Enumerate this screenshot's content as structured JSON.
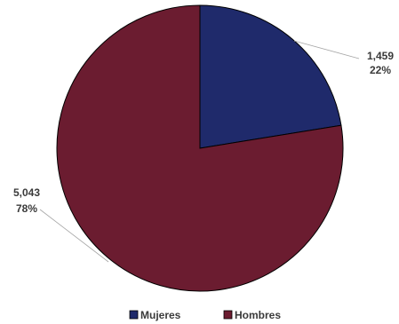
{
  "chart_data": {
    "type": "pie",
    "title": "",
    "legend_position": "bottom",
    "slices": [
      {
        "label": "Mujeres",
        "value": 1459,
        "value_label": "1,459",
        "percent_label": "22%",
        "color": "#1f2a6b"
      },
      {
        "label": "Hombres",
        "value": 5043,
        "value_label": "5,043",
        "percent_label": "78%",
        "color": "#6b1c30"
      }
    ]
  }
}
